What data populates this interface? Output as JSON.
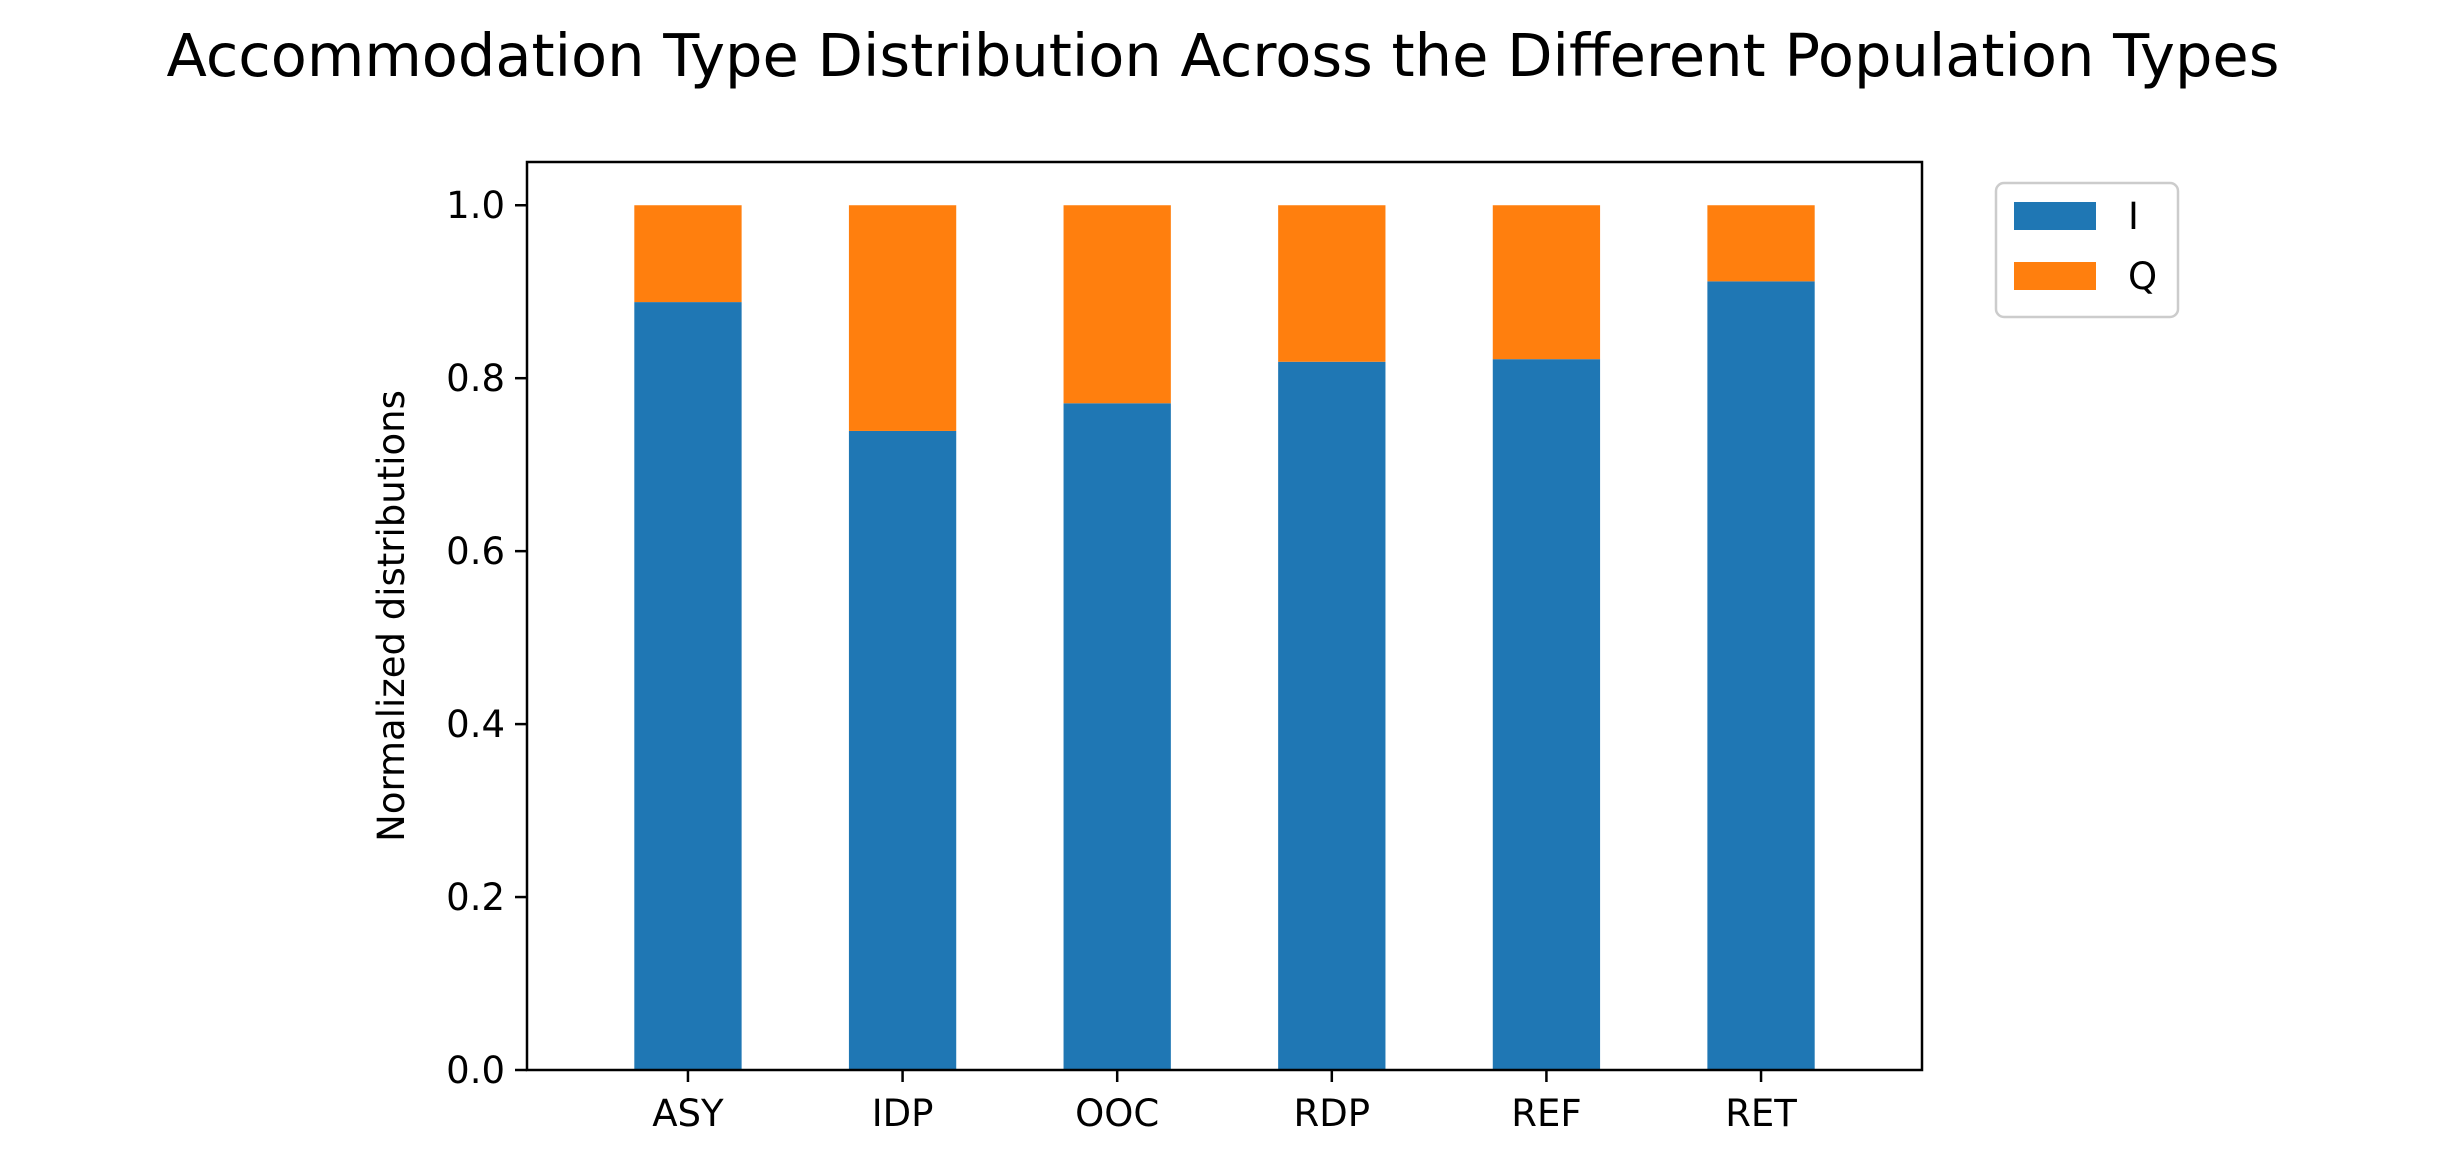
{
  "chart_data": {
    "type": "bar",
    "stacked": true,
    "title": "Accommodation Type Distribution Across the Different Population Types",
    "xlabel": "",
    "ylabel": "Normalized distributions",
    "categories": [
      "ASY",
      "IDP",
      "OOC",
      "RDP",
      "REF",
      "RET"
    ],
    "series": [
      {
        "name": "I",
        "color": "#1f77b4",
        "values": [
          0.888,
          0.739,
          0.771,
          0.819,
          0.822,
          0.912
        ]
      },
      {
        "name": "Q",
        "color": "#ff7f0e",
        "values": [
          0.112,
          0.261,
          0.229,
          0.181,
          0.178,
          0.088
        ]
      }
    ],
    "ylim": [
      0,
      1.05
    ],
    "yticks": [
      "0.0",
      "0.2",
      "0.4",
      "0.6",
      "0.8",
      "1.0"
    ],
    "grid": false,
    "legend_position": "outside-top-right"
  }
}
